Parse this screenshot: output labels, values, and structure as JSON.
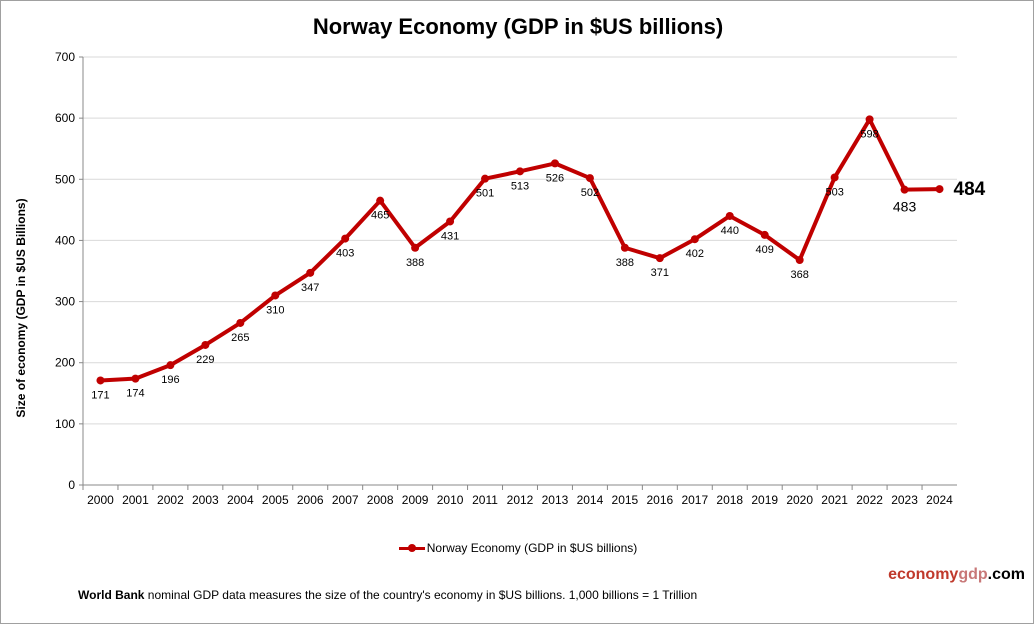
{
  "chart_data": {
    "type": "line",
    "title": "Norway Economy (GDP in $US billions)",
    "ylabel": "Size of economy (GDP in $US Billions)",
    "xlabel": "",
    "ylim": [
      0,
      700
    ],
    "yticks": [
      0,
      100,
      200,
      300,
      400,
      500,
      600,
      700
    ],
    "grid": true,
    "legend_placement": "bottom",
    "categories": [
      "2000",
      "2001",
      "2002",
      "2003",
      "2004",
      "2005",
      "2006",
      "2007",
      "2008",
      "2009",
      "2010",
      "2011",
      "2012",
      "2013",
      "2014",
      "2015",
      "2016",
      "2017",
      "2018",
      "2019",
      "2020",
      "2021",
      "2022",
      "2023",
      "2024"
    ],
    "series": [
      {
        "name": "Norway Economy (GDP in $US billions)",
        "color": "#c00000",
        "values": [
          171,
          174,
          196,
          229,
          265,
          310,
          347,
          403,
          465,
          388,
          431,
          501,
          513,
          526,
          502,
          388,
          371,
          402,
          440,
          409,
          368,
          503,
          598,
          483,
          484
        ]
      }
    ]
  },
  "footnote": {
    "bold": "World Bank",
    "text": " nominal GDP data  measures the size of the country's economy in $US billions. 1,000 billions = 1 Trillion"
  },
  "logo": {
    "part1": "economy",
    "part2": "gdp",
    "part3": ".com",
    "colors": [
      "#c0392b",
      "#c87070",
      "#000000"
    ]
  }
}
